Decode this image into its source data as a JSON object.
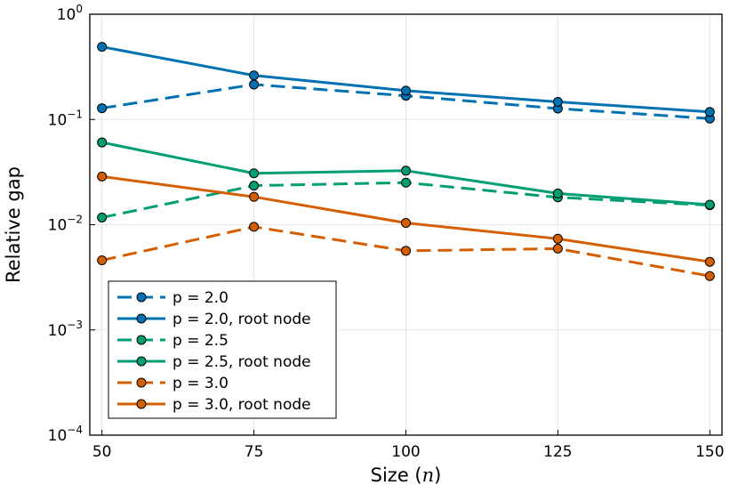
{
  "chart_data": {
    "type": "line",
    "title": "",
    "xlabel": "Size (",
    "xlabel_var": "n",
    "xlabel_close": ")",
    "ylabel": "Relative gap",
    "yscale": "log",
    "xlim": [
      48,
      152
    ],
    "ylim_exp": [
      -4,
      0
    ],
    "ylim": [
      0.0001,
      1
    ],
    "grid": true,
    "legend_position": "bottom-left",
    "x": [
      50,
      75,
      100,
      125,
      150
    ],
    "x_ticks": [
      "50",
      "75",
      "100",
      "125",
      "150"
    ],
    "y_ticks": [
      {
        "exp": 0,
        "base": "10",
        "sup": "0"
      },
      {
        "exp": -1,
        "base": "10",
        "sup": "−1"
      },
      {
        "exp": -2,
        "base": "10",
        "sup": "−2"
      },
      {
        "exp": -3,
        "base": "10",
        "sup": "−3"
      },
      {
        "exp": -4,
        "base": "10",
        "sup": "−4"
      }
    ],
    "series": [
      {
        "name": "p = 2.0",
        "color": "#0072b2",
        "dashed": true,
        "values": [
          0.128,
          0.215,
          0.168,
          0.127,
          0.102
        ]
      },
      {
        "name": "p = 2.0, root node",
        "color": "#0072b2",
        "dashed": false,
        "values": [
          0.49,
          0.262,
          0.188,
          0.147,
          0.118
        ]
      },
      {
        "name": "p = 2.5",
        "color": "#009e73",
        "dashed": true,
        "values": [
          0.0117,
          0.0235,
          0.0251,
          0.0182,
          0.0153
        ]
      },
      {
        "name": "p = 2.5, root node",
        "color": "#009e73",
        "dashed": false,
        "values": [
          0.0605,
          0.0308,
          0.0326,
          0.0198,
          0.0155
        ]
      },
      {
        "name": "p = 3.0",
        "color": "#d55e00",
        "dashed": true,
        "values": [
          0.00459,
          0.00954,
          0.00565,
          0.00592,
          0.00325
        ]
      },
      {
        "name": "p = 3.0, root node",
        "color": "#d55e00",
        "dashed": false,
        "values": [
          0.0287,
          0.0184,
          0.0104,
          0.00735,
          0.00444
        ]
      }
    ]
  }
}
